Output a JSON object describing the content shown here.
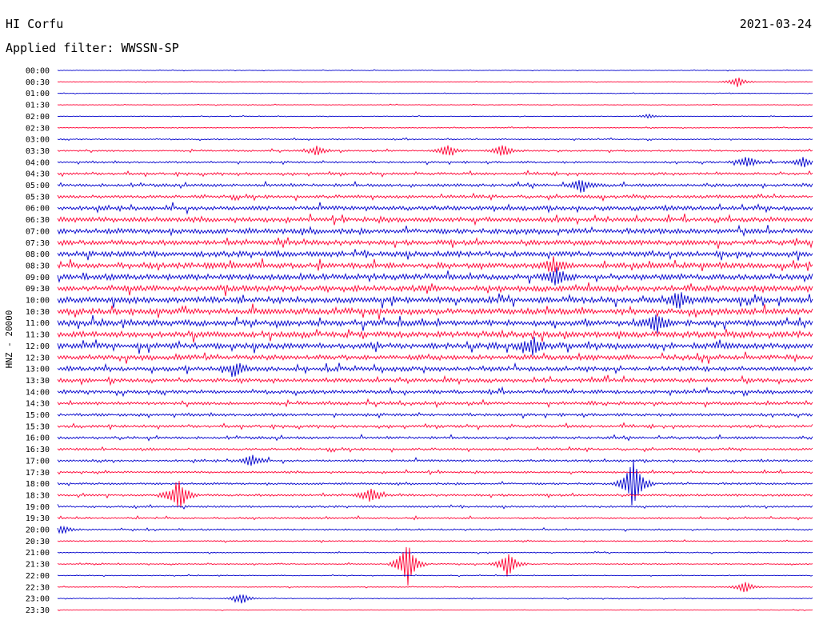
{
  "header": {
    "station": "HI Corfu",
    "date": "2021-03-24",
    "filter": "Applied filter: WWSSN-SP"
  },
  "chart_data": {
    "type": "line",
    "title": "HI Corfu",
    "channel_label": "HNZ - 20000",
    "trace_labels": [
      "00:00",
      "00:30",
      "01:00",
      "01:30",
      "02:00",
      "02:30",
      "03:00",
      "03:30",
      "04:00",
      "04:30",
      "05:00",
      "05:30",
      "06:00",
      "06:30",
      "07:00",
      "07:30",
      "08:00",
      "08:30",
      "09:00",
      "09:30",
      "10:00",
      "10:30",
      "11:00",
      "11:30",
      "12:00",
      "12:30",
      "13:00",
      "13:30",
      "14:00",
      "14:30",
      "15:00",
      "15:30",
      "16:00",
      "16:30",
      "17:00",
      "17:30",
      "18:00",
      "18:30",
      "19:00",
      "19:30",
      "20:00",
      "20:30",
      "21:00",
      "21:30",
      "22:00",
      "22:30",
      "23:00",
      "23:30"
    ],
    "series_colors": [
      "#0000cc",
      "#ff0033"
    ],
    "noise_level": [
      0.3,
      0.3,
      0.3,
      0.3,
      0.3,
      0.4,
      0.6,
      0.8,
      1.0,
      1.2,
      1.5,
      1.6,
      2.2,
      2.4,
      2.6,
      2.5,
      2.8,
      2.9,
      3.0,
      3.0,
      3.0,
      3.0,
      3.0,
      3.0,
      3.0,
      2.5,
      2.3,
      2.0,
      1.8,
      1.6,
      1.4,
      1.3,
      1.3,
      1.2,
      1.1,
      1.0,
      1.0,
      1.1,
      1.0,
      0.9,
      0.8,
      0.6,
      0.5,
      0.5,
      0.4,
      0.4,
      0.4,
      0.3
    ],
    "events": [
      {
        "trace": 1,
        "minute": 27,
        "amplitude": 7
      },
      {
        "trace": 4,
        "minute": 23.5,
        "amplitude": 3
      },
      {
        "trace": 7,
        "minute": 10.3,
        "amplitude": 6
      },
      {
        "trace": 7,
        "minute": 15.5,
        "amplitude": 9
      },
      {
        "trace": 7,
        "minute": 17.7,
        "amplitude": 8
      },
      {
        "trace": 8,
        "minute": 27.4,
        "amplitude": 8
      },
      {
        "trace": 8,
        "minute": 29.6,
        "amplitude": 7
      },
      {
        "trace": 10,
        "minute": 20.8,
        "amplitude": 10
      },
      {
        "trace": 17,
        "minute": 19.7,
        "amplitude": 10
      },
      {
        "trace": 18,
        "minute": 19.8,
        "amplitude": 12
      },
      {
        "trace": 20,
        "minute": 24.7,
        "amplitude": 11
      },
      {
        "trace": 22,
        "minute": 23.8,
        "amplitude": 13
      },
      {
        "trace": 24,
        "minute": 18.9,
        "amplitude": 11
      },
      {
        "trace": 26,
        "minute": 7.1,
        "amplitude": 8
      },
      {
        "trace": 34,
        "minute": 7.7,
        "amplitude": 9
      },
      {
        "trace": 36,
        "minute": 22.9,
        "amplitude": 38
      },
      {
        "trace": 37,
        "minute": 4.8,
        "amplitude": 25
      },
      {
        "trace": 37,
        "minute": 12.4,
        "amplitude": 10
      },
      {
        "trace": 40,
        "minute": 0.2,
        "amplitude": 5
      },
      {
        "trace": 43,
        "minute": 13.9,
        "amplitude": 33
      },
      {
        "trace": 43,
        "minute": 17.9,
        "amplitude": 18
      },
      {
        "trace": 45,
        "minute": 27.3,
        "amplitude": 8
      },
      {
        "trace": 46,
        "minute": 7.3,
        "amplitude": 8
      }
    ]
  }
}
